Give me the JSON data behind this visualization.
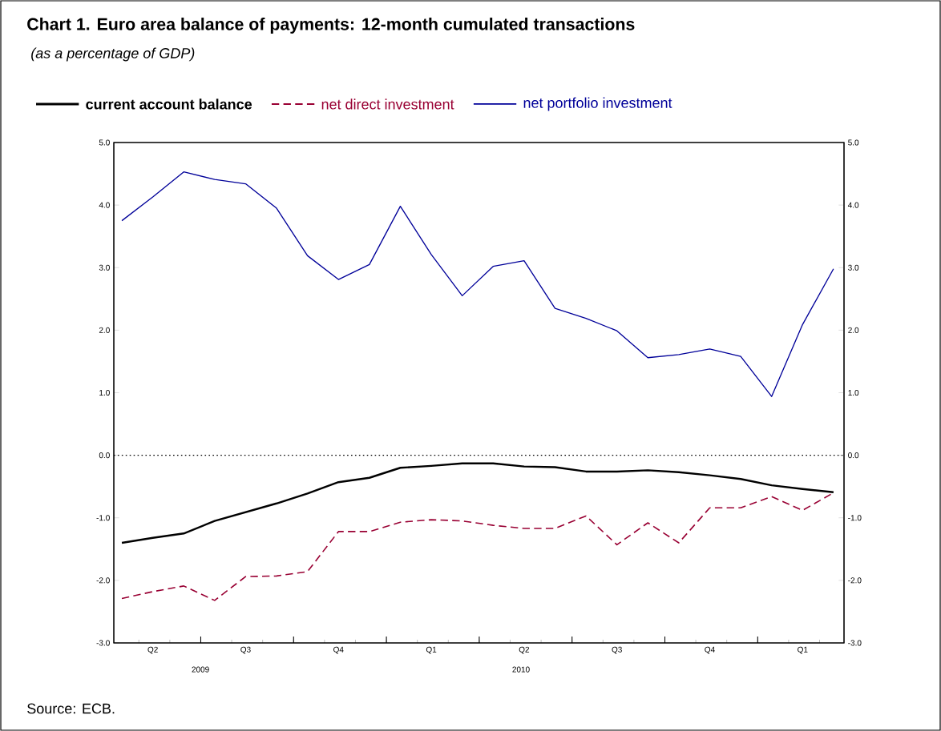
{
  "chart_data": {
    "type": "line",
    "title": "Chart 1. Euro area balance of payments: 12-month cumulated transactions",
    "subtitle": "(as a percentage of GDP)",
    "categories": [
      null,
      "Q2",
      null,
      null,
      "Q3",
      null,
      null,
      "Q4",
      null,
      null,
      "Q1",
      null,
      null,
      "Q2",
      null,
      null,
      "Q3",
      null,
      null,
      "Q4",
      null,
      null,
      "Q1",
      null
    ],
    "series": [
      {
        "name": "current account balance",
        "color": "#000000",
        "values": [
          -1.4,
          -1.32,
          -1.25,
          -1.05,
          -0.91,
          -0.77,
          -0.61,
          -0.43,
          -0.36,
          -0.2,
          -0.17,
          -0.13,
          -0.13,
          -0.18,
          -0.19,
          -0.26,
          -0.26,
          -0.24,
          -0.27,
          -0.32,
          -0.38,
          -0.48,
          -0.54,
          -0.59
        ]
      },
      {
        "name": "net direct investment",
        "color": "#990033",
        "line_style": "dashed",
        "values": [
          -2.29,
          -2.18,
          -2.09,
          -2.32,
          -1.94,
          -1.93,
          -1.86,
          -1.22,
          -1.22,
          -1.07,
          -1.03,
          -1.05,
          -1.12,
          -1.17,
          -1.17,
          -0.97,
          -1.43,
          -1.08,
          -1.4,
          -0.84,
          -0.84,
          -0.66,
          -0.88,
          -0.6
        ]
      },
      {
        "name": "net portfolio investment",
        "color": "#000099",
        "values": [
          3.75,
          4.13,
          4.53,
          4.41,
          4.34,
          3.95,
          3.19,
          2.81,
          3.05,
          3.98,
          3.21,
          2.55,
          3.02,
          3.11,
          2.35,
          2.19,
          1.99,
          1.56,
          1.61,
          1.7,
          1.58,
          0.94,
          2.09,
          2.98
        ]
      }
    ],
    "ylim": [
      -3,
      5
    ],
    "yticks": [
      {
        "value": -3,
        "label": "-3.0"
      },
      {
        "value": -2,
        "label": "-2.0"
      },
      {
        "value": -1,
        "label": "-1.0"
      },
      {
        "value": 0,
        "label": "0.0"
      },
      {
        "value": 1,
        "label": "1.0"
      },
      {
        "value": 2,
        "label": "2.0"
      },
      {
        "value": 3,
        "label": "3.0"
      },
      {
        "value": 4,
        "label": "4.0"
      },
      {
        "value": 5,
        "label": "5.0"
      }
    ],
    "y2lim": [
      -3,
      5
    ],
    "y2ticks": [
      {
        "value": -3,
        "label": "-3.0"
      },
      {
        "value": -2,
        "label": "-2.0"
      },
      {
        "value": -1,
        "label": "-1.0"
      },
      {
        "value": 0,
        "label": "0.0"
      },
      {
        "value": 1,
        "label": "1.0"
      },
      {
        "value": 2,
        "label": "2.0"
      },
      {
        "value": 3,
        "label": "3.0"
      },
      {
        "value": 4,
        "label": "4.0"
      },
      {
        "value": 5,
        "label": "5.0"
      }
    ],
    "ref_lines": [
      {
        "axis": "y",
        "value": 0,
        "color": "#000000",
        "line_style": "dotted"
      }
    ],
    "legend": "top",
    "annotations": [
      "2009",
      "2010",
      "Source: ECB."
    ]
  }
}
